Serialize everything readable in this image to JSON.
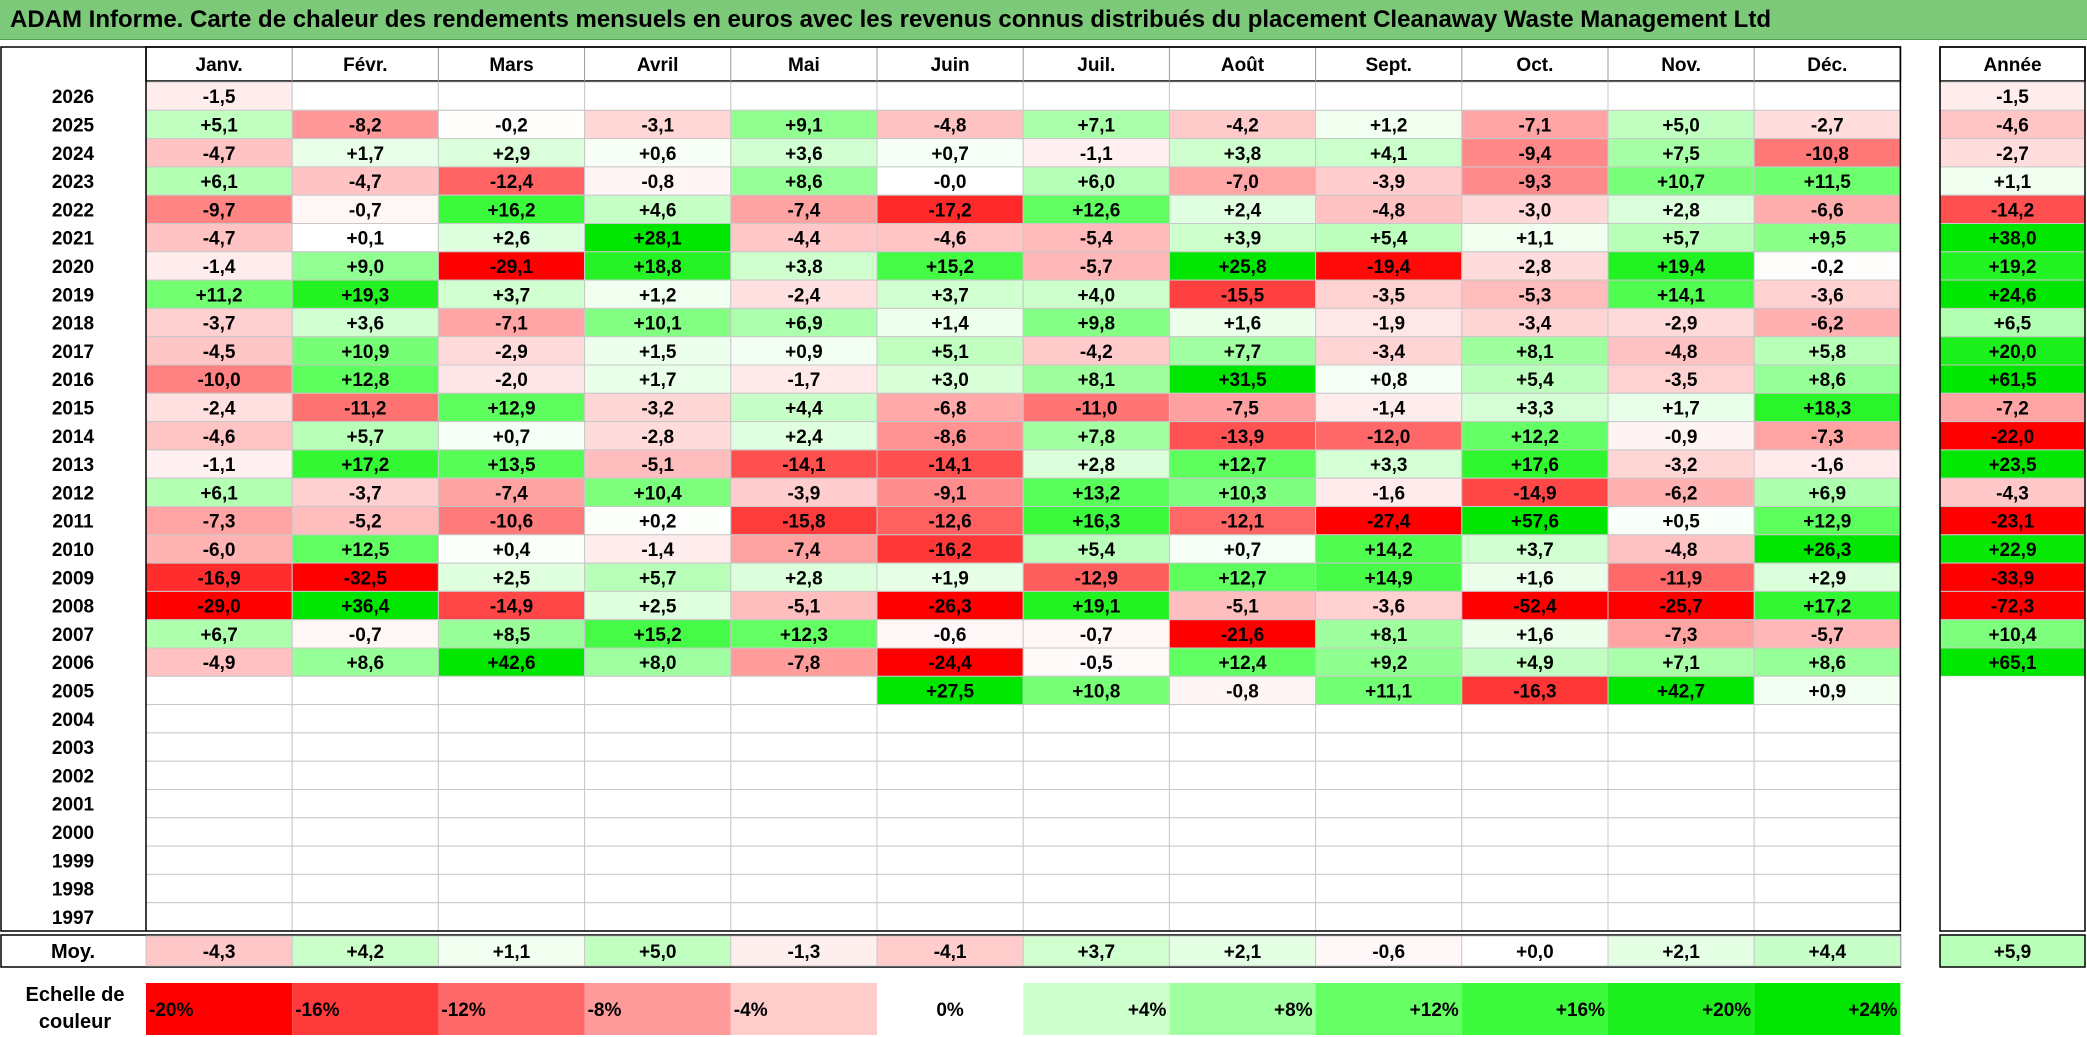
{
  "title": "ADAM Informe. Carte de chaleur des rendements mensuels en euros avec les revenus connus distribués du placement Cleanaway Waste Management Ltd",
  "chart_data": {
    "type": "heatmap",
    "months": [
      "Janv.",
      "Févr.",
      "Mars",
      "Avril",
      "Mai",
      "Juin",
      "Juil.",
      "Août",
      "Sept.",
      "Oct.",
      "Nov.",
      "Déc."
    ],
    "year_column_label": "Année",
    "years": [
      2026,
      2025,
      2024,
      2023,
      2022,
      2021,
      2020,
      2019,
      2018,
      2017,
      2016,
      2015,
      2014,
      2013,
      2012,
      2011,
      2010,
      2009,
      2008,
      2007,
      2006,
      2005,
      2004,
      2003,
      2002,
      2001,
      2000,
      1999,
      1998,
      1997
    ],
    "values": [
      [
        -1.5,
        null,
        null,
        null,
        null,
        null,
        null,
        null,
        null,
        null,
        null,
        null
      ],
      [
        5.1,
        -8.2,
        -0.2,
        -3.1,
        9.1,
        -4.8,
        7.1,
        -4.2,
        1.2,
        -7.1,
        5.0,
        -2.7
      ],
      [
        -4.7,
        1.7,
        2.9,
        0.6,
        3.6,
        0.7,
        -1.1,
        3.8,
        4.1,
        -9.4,
        7.5,
        -10.8
      ],
      [
        6.1,
        -4.7,
        -12.4,
        -0.8,
        8.6,
        "-0,0",
        6.0,
        -7.0,
        -3.9,
        -9.3,
        10.7,
        11.5
      ],
      [
        -9.7,
        -0.7,
        16.2,
        4.6,
        -7.4,
        -17.2,
        12.6,
        2.4,
        -4.8,
        -3.0,
        2.8,
        -6.6
      ],
      [
        -4.7,
        0.1,
        2.6,
        28.1,
        -4.4,
        -4.6,
        -5.4,
        3.9,
        5.4,
        1.1,
        5.7,
        9.5
      ],
      [
        -1.4,
        9.0,
        -29.1,
        18.8,
        3.8,
        15.2,
        -5.7,
        25.8,
        -19.4,
        -2.8,
        19.4,
        -0.2
      ],
      [
        11.2,
        19.3,
        3.7,
        1.2,
        -2.4,
        3.7,
        4.0,
        -15.5,
        -3.5,
        -5.3,
        14.1,
        -3.6
      ],
      [
        -3.7,
        3.6,
        -7.1,
        10.1,
        6.9,
        1.4,
        9.8,
        1.6,
        -1.9,
        -3.4,
        -2.9,
        -6.2
      ],
      [
        -4.5,
        10.9,
        -2.9,
        1.5,
        0.9,
        5.1,
        -4.2,
        7.7,
        -3.4,
        8.1,
        -4.8,
        5.8
      ],
      [
        -10.0,
        12.8,
        -2.0,
        1.7,
        -1.7,
        3.0,
        8.1,
        31.5,
        0.8,
        5.4,
        -3.5,
        8.6
      ],
      [
        -2.4,
        -11.2,
        12.9,
        -3.2,
        4.4,
        -6.8,
        -11.0,
        -7.5,
        -1.4,
        3.3,
        1.7,
        18.3
      ],
      [
        -4.6,
        5.7,
        0.7,
        -2.8,
        2.4,
        -8.6,
        7.8,
        -13.9,
        -12.0,
        12.2,
        -0.9,
        -7.3
      ],
      [
        -1.1,
        17.2,
        13.5,
        -5.1,
        -14.1,
        -14.1,
        2.8,
        12.7,
        3.3,
        17.6,
        -3.2,
        -1.6
      ],
      [
        6.1,
        -3.7,
        -7.4,
        10.4,
        -3.9,
        -9.1,
        13.2,
        10.3,
        -1.6,
        -14.9,
        -6.2,
        6.9
      ],
      [
        -7.3,
        -5.2,
        -10.6,
        0.2,
        -15.8,
        -12.6,
        16.3,
        -12.1,
        -27.4,
        57.6,
        0.5,
        12.9
      ],
      [
        -6.0,
        12.5,
        0.4,
        -1.4,
        -7.4,
        -16.2,
        5.4,
        0.7,
        14.2,
        3.7,
        -4.8,
        26.3
      ],
      [
        -16.9,
        -32.5,
        2.5,
        5.7,
        2.8,
        1.9,
        -12.9,
        12.7,
        14.9,
        1.6,
        -11.9,
        2.9
      ],
      [
        -29.0,
        36.4,
        -14.9,
        2.5,
        -5.1,
        -26.3,
        19.1,
        -5.1,
        -3.6,
        -52.4,
        -25.7,
        17.2
      ],
      [
        6.7,
        -0.7,
        8.5,
        15.2,
        12.3,
        -0.6,
        -0.7,
        -21.6,
        8.1,
        1.6,
        -7.3,
        -5.7
      ],
      [
        -4.9,
        8.6,
        42.6,
        8.0,
        -7.8,
        -24.4,
        -0.5,
        12.4,
        9.2,
        4.9,
        7.1,
        8.6
      ],
      [
        null,
        null,
        null,
        null,
        null,
        27.5,
        10.8,
        -0.8,
        11.1,
        -16.3,
        42.7,
        0.9
      ],
      [
        null,
        null,
        null,
        null,
        null,
        null,
        null,
        null,
        null,
        null,
        null,
        null
      ],
      [
        null,
        null,
        null,
        null,
        null,
        null,
        null,
        null,
        null,
        null,
        null,
        null
      ],
      [
        null,
        null,
        null,
        null,
        null,
        null,
        null,
        null,
        null,
        null,
        null,
        null
      ],
      [
        null,
        null,
        null,
        null,
        null,
        null,
        null,
        null,
        null,
        null,
        null,
        null
      ],
      [
        null,
        null,
        null,
        null,
        null,
        null,
        null,
        null,
        null,
        null,
        null,
        null
      ],
      [
        null,
        null,
        null,
        null,
        null,
        null,
        null,
        null,
        null,
        null,
        null,
        null
      ],
      [
        null,
        null,
        null,
        null,
        null,
        null,
        null,
        null,
        null,
        null,
        null,
        null
      ],
      [
        null,
        null,
        null,
        null,
        null,
        null,
        null,
        null,
        null,
        null,
        null,
        null
      ]
    ],
    "annual": [
      -1.5,
      -4.6,
      -2.7,
      1.1,
      -14.2,
      38.0,
      19.2,
      24.6,
      6.5,
      20.0,
      61.5,
      -7.2,
      -22.0,
      23.5,
      -4.3,
      -23.1,
      22.9,
      -33.9,
      -72.3,
      10.4,
      65.1,
      null,
      null,
      null,
      null,
      null,
      null,
      null,
      null,
      null
    ],
    "average_label": "Moy.",
    "averages": [
      -4.3,
      4.2,
      1.1,
      5.0,
      -1.3,
      -4.1,
      3.7,
      2.1,
      -0.6,
      "+0,0",
      2.1,
      4.4
    ],
    "average_annual": 5.9,
    "scale_label": [
      "Echelle de",
      "couleur"
    ],
    "scale": [
      {
        "label": "-20%",
        "value": -20,
        "color": "#ff0000"
      },
      {
        "label": "-16%",
        "value": -16,
        "color": "#ff3a3a"
      },
      {
        "label": "-12%",
        "value": -12,
        "color": "#ff6868"
      },
      {
        "label": "-8%",
        "value": -8,
        "color": "#ff9a9a"
      },
      {
        "label": "-4%",
        "value": -4,
        "color": "#ffcccc"
      },
      {
        "label": "0%",
        "value": 0,
        "color": "#ffffff"
      },
      {
        "label": "+4%",
        "value": 4,
        "color": "#ccffcc"
      },
      {
        "label": "+8%",
        "value": 8,
        "color": "#a0ffa0"
      },
      {
        "label": "+12%",
        "value": 12,
        "color": "#66ff66"
      },
      {
        "label": "+16%",
        "value": 16,
        "color": "#3dfa3d"
      },
      {
        "label": "+20%",
        "value": 20,
        "color": "#1cf01c"
      },
      {
        "label": "+24%",
        "value": 24,
        "color": "#00e600"
      }
    ]
  }
}
